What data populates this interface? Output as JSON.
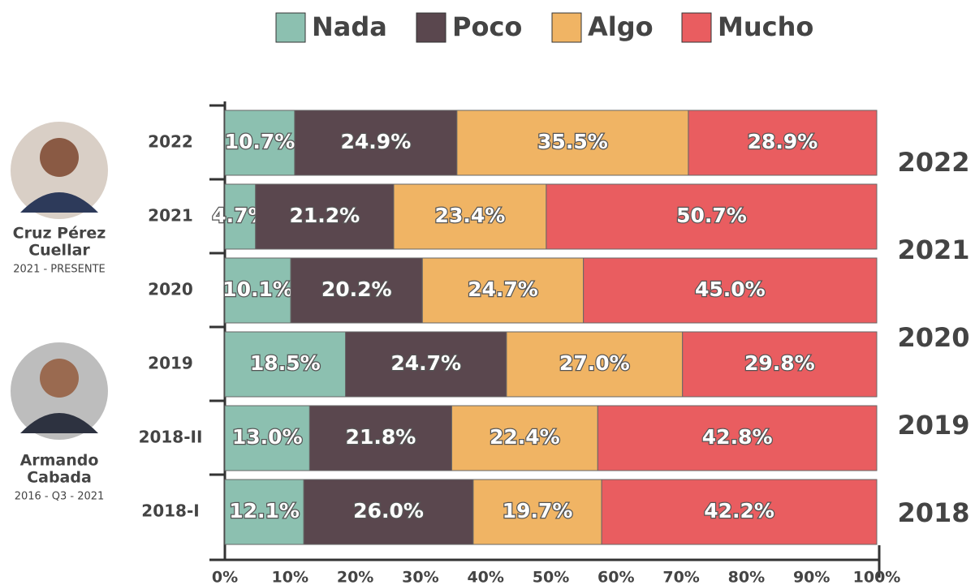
{
  "chart_data": {
    "type": "stacked-barh",
    "categories": [
      "2022",
      "2021",
      "2020",
      "2019",
      "2018-II",
      "2018-I"
    ],
    "series": [
      {
        "name": "Nada",
        "color": "#8cc0b0",
        "values": [
          10.7,
          4.7,
          10.1,
          18.5,
          13.0,
          12.1
        ],
        "value_labels": [
          "10.7%",
          "4.7%",
          "10.1%",
          "18.5%",
          "13.0%",
          "12.1%"
        ]
      },
      {
        "name": "Poco",
        "color": "#5a474e",
        "values": [
          24.9,
          21.2,
          20.2,
          24.7,
          21.8,
          26.0
        ],
        "value_labels": [
          "24.9%",
          "21.2%",
          "20.2%",
          "24.7%",
          "21.8%",
          "26.0%"
        ]
      },
      {
        "name": "Algo",
        "color": "#f0b464",
        "values": [
          35.5,
          23.4,
          24.7,
          27.0,
          22.4,
          19.7
        ],
        "value_labels": [
          "35.5%",
          "23.4%",
          "24.7%",
          "27.0%",
          "22.4%",
          "19.7%"
        ]
      },
      {
        "name": "Mucho",
        "color": "#e95d60",
        "values": [
          28.9,
          50.7,
          45.0,
          29.8,
          42.8,
          42.2
        ],
        "value_labels": [
          "28.9%",
          "50.7%",
          "45.0%",
          "29.8%",
          "42.8%",
          "42.2%"
        ]
      }
    ],
    "xlim": [
      0,
      100
    ],
    "xticks": [
      {
        "value": 0,
        "label": "0%"
      },
      {
        "value": 10,
        "label": "10%"
      },
      {
        "value": 20,
        "label": "20%"
      },
      {
        "value": 30,
        "label": "30%"
      },
      {
        "value": 40,
        "label": "40%"
      },
      {
        "value": 50,
        "label": "50%"
      },
      {
        "value": 60,
        "label": "60%"
      },
      {
        "value": 70,
        "label": "70%"
      },
      {
        "value": 80,
        "label": "80%"
      },
      {
        "value": 90,
        "label": "90%"
      },
      {
        "value": 100,
        "label": "100%"
      }
    ],
    "legend": "top",
    "side_labels": [
      "2022",
      "2021",
      "2020",
      "2019",
      "2018"
    ],
    "people": [
      {
        "name": [
          "Cruz Pérez",
          "Cuellar"
        ],
        "period": "2021 - PRESENTE"
      },
      {
        "name": [
          "Armando",
          "Cabada"
        ],
        "period": "2016 - Q3 - 2021"
      }
    ]
  }
}
